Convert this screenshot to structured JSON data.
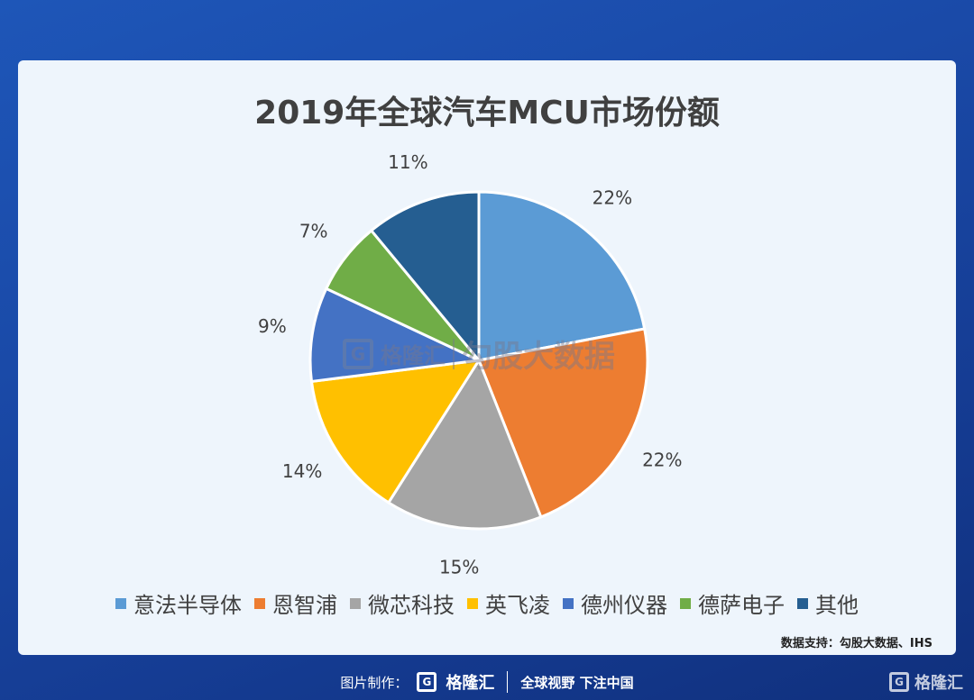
{
  "chart_data": {
    "type": "pie",
    "title": "2019年全球汽车MCU市场份额",
    "categories": [
      "意法半导体",
      "恩智浦",
      "微芯科技",
      "英飞凌",
      "德州仪器",
      "德萨电子",
      "其他"
    ],
    "values": [
      22,
      22,
      15,
      14,
      9,
      7,
      11
    ],
    "labels": [
      "22%",
      "22%",
      "15%",
      "14%",
      "9%",
      "7%",
      "11%"
    ],
    "colors": [
      "#5b9bd5",
      "#ed7d31",
      "#a5a5a5",
      "#ffc000",
      "#4472c4",
      "#70ad47",
      "#255e91"
    ],
    "legend_position": "bottom"
  },
  "source_text": "数据支持：勾股大数据、IHS",
  "watermark": {
    "logo_letter": "G",
    "brand": "格隆汇",
    "text": "勾股大数据"
  },
  "footer": {
    "made_by": "图片制作：",
    "logo_letter": "G",
    "brand": "格隆汇",
    "slogan": "全球视野 下注中国"
  },
  "corner_logo": {
    "logo_letter": "G",
    "brand": "格隆汇"
  }
}
